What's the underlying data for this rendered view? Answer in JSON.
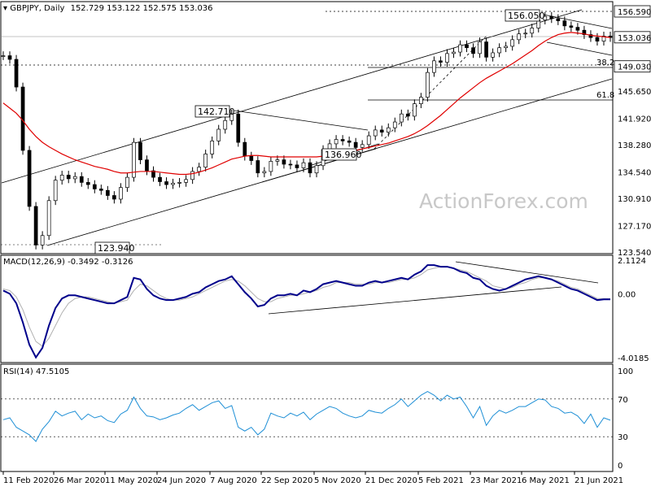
{
  "chart_data": [
    {
      "type": "candlestick",
      "title": "GBPJPY, Daily",
      "ohlc_header": "152.729 153.122 152.575 153.036",
      "y_ticks": [
        "156.590",
        "153.036",
        "149.030",
        "145.650",
        "141.920",
        "138.280",
        "134.540",
        "130.910",
        "127.170",
        "123.540"
      ],
      "ylim": [
        123.54,
        156.59
      ],
      "x_ticks": [
        "11 Feb 2020",
        "26 Mar 2020",
        "11 May 2020",
        "24 Jun 2020",
        "7 Aug 2020",
        "22 Sep 2020",
        "5 Nov 2020",
        "21 Dec 2020",
        "5 Feb 2021",
        "23 Mar 2021",
        "6 May 2021",
        "21 Jun 2021"
      ],
      "close_series": [
        150.5,
        150.0,
        146.2,
        137.5,
        129.8,
        124.5,
        125.8,
        130.6,
        133.4,
        134.1,
        133.6,
        133.9,
        133.1,
        132.8,
        132.2,
        132.0,
        131.3,
        130.8,
        132.4,
        133.8,
        138.6,
        136.2,
        134.7,
        133.8,
        133.2,
        132.8,
        133.0,
        133.1,
        133.5,
        134.6,
        135.2,
        137.0,
        138.8,
        140.4,
        141.6,
        142.5,
        138.6,
        136.7,
        136.1,
        134.4,
        134.6,
        136.0,
        136.2,
        135.6,
        135.5,
        135.1,
        135.8,
        134.4,
        135.4,
        137.6,
        138.4,
        139.0,
        138.8,
        138.6,
        137.9,
        138.3,
        139.5,
        140.3,
        140.0,
        140.6,
        141.4,
        142.5,
        142.2,
        143.9,
        144.8,
        148.2,
        149.8,
        149.6,
        150.8,
        151.0,
        152.0,
        151.6,
        150.8,
        152.4,
        150.3,
        150.9,
        151.6,
        151.8,
        152.7,
        153.5,
        153.6,
        154.3,
        155.4,
        155.9,
        155.6,
        155.3,
        154.6,
        154.4,
        154.0,
        153.4,
        153.0,
        152.5,
        153.2,
        153.0
      ],
      "sma55": [
        144.0,
        143.3,
        142.6,
        141.6,
        140.4,
        139.4,
        138.6,
        138.0,
        137.5,
        137.0,
        136.6,
        136.2,
        135.9,
        135.6,
        135.3,
        135.1,
        134.9,
        134.6,
        134.4,
        134.4,
        134.5,
        134.6,
        134.6,
        134.6,
        134.5,
        134.4,
        134.3,
        134.2,
        134.2,
        134.3,
        134.5,
        134.8,
        135.1,
        135.5,
        135.9,
        136.3,
        136.5,
        136.7,
        136.8,
        136.8,
        136.7,
        136.6,
        136.6,
        136.6,
        136.6,
        136.6,
        136.6,
        136.6,
        136.6,
        136.7,
        136.8,
        137.0,
        137.2,
        137.4,
        137.5,
        137.7,
        137.9,
        138.1,
        138.3,
        138.5,
        138.8,
        139.1,
        139.4,
        139.8,
        140.3,
        140.9,
        141.6,
        142.3,
        143.1,
        143.9,
        144.7,
        145.4,
        146.1,
        146.8,
        147.4,
        147.9,
        148.4,
        148.9,
        149.4,
        150.0,
        150.6,
        151.2,
        151.9,
        152.5,
        153.0,
        153.4,
        153.6,
        153.7,
        153.6,
        153.5,
        153.3,
        153.2,
        153.1,
        153.0
      ],
      "macd_label": "MACD(12,26,9) -0.3492 -0.3126",
      "macd_ticks": [
        "2.1124",
        "0.00",
        "-4.0185"
      ],
      "macd_ylim": [
        -4.0185,
        2.1124
      ],
      "macd_series": [
        0.2,
        0.0,
        -0.6,
        -1.8,
        -3.2,
        -4.0,
        -3.4,
        -2.0,
        -0.9,
        -0.3,
        -0.1,
        -0.1,
        -0.2,
        -0.3,
        -0.4,
        -0.5,
        -0.6,
        -0.6,
        -0.4,
        -0.2,
        1.0,
        0.9,
        0.3,
        -0.1,
        -0.3,
        -0.4,
        -0.4,
        -0.3,
        -0.2,
        0.0,
        0.1,
        0.4,
        0.6,
        0.8,
        0.9,
        1.1,
        0.6,
        0.1,
        -0.3,
        -0.8,
        -0.7,
        -0.3,
        -0.1,
        -0.1,
        0.0,
        -0.1,
        0.2,
        0.1,
        0.3,
        0.6,
        0.7,
        0.8,
        0.7,
        0.6,
        0.5,
        0.5,
        0.7,
        0.8,
        0.7,
        0.8,
        0.9,
        1.0,
        0.9,
        1.2,
        1.4,
        1.8,
        1.8,
        1.7,
        1.7,
        1.6,
        1.4,
        1.3,
        1.0,
        0.9,
        0.5,
        0.3,
        0.2,
        0.3,
        0.5,
        0.7,
        0.9,
        1.0,
        1.1,
        1.0,
        0.9,
        0.7,
        0.5,
        0.3,
        0.2,
        0.0,
        -0.2,
        -0.4,
        -0.35,
        -0.35
      ],
      "macd_signal": [
        0.3,
        0.2,
        -0.2,
        -1.0,
        -2.1,
        -3.0,
        -3.3,
        -2.8,
        -2.0,
        -1.2,
        -0.6,
        -0.3,
        -0.2,
        -0.2,
        -0.3,
        -0.4,
        -0.5,
        -0.6,
        -0.5,
        -0.4,
        0.2,
        0.6,
        0.5,
        0.2,
        -0.1,
        -0.3,
        -0.4,
        -0.4,
        -0.3,
        -0.2,
        0.0,
        0.2,
        0.4,
        0.6,
        0.8,
        0.9,
        0.8,
        0.5,
        0.1,
        -0.3,
        -0.5,
        -0.5,
        -0.3,
        -0.2,
        -0.1,
        -0.1,
        0.0,
        0.1,
        0.2,
        0.4,
        0.5,
        0.7,
        0.7,
        0.7,
        0.6,
        0.6,
        0.6,
        0.7,
        0.7,
        0.7,
        0.8,
        0.9,
        0.9,
        1.0,
        1.2,
        1.5,
        1.6,
        1.7,
        1.7,
        1.6,
        1.5,
        1.4,
        1.2,
        1.0,
        0.8,
        0.5,
        0.4,
        0.3,
        0.4,
        0.6,
        0.7,
        0.9,
        1.0,
        1.0,
        0.9,
        0.8,
        0.6,
        0.4,
        0.3,
        0.1,
        -0.1,
        -0.3,
        -0.3,
        -0.31
      ],
      "rsi_label": "RSI(14) 47.5105",
      "rsi_ticks": [
        "100",
        "70",
        "30",
        "0"
      ],
      "rsi_ylim": [
        0,
        100
      ],
      "rsi_series": [
        48,
        50,
        40,
        36,
        32,
        25,
        38,
        46,
        57,
        52,
        55,
        57,
        48,
        54,
        50,
        52,
        47,
        45,
        54,
        58,
        72,
        60,
        52,
        51,
        48,
        50,
        53,
        55,
        60,
        64,
        58,
        62,
        66,
        68,
        60,
        63,
        40,
        36,
        40,
        32,
        38,
        55,
        52,
        50,
        55,
        52,
        56,
        48,
        54,
        58,
        62,
        60,
        55,
        52,
        50,
        52,
        58,
        56,
        55,
        60,
        64,
        70,
        62,
        68,
        74,
        78,
        74,
        68,
        74,
        70,
        72,
        62,
        50,
        62,
        42,
        52,
        58,
        55,
        58,
        62,
        62,
        66,
        70,
        69,
        62,
        60,
        55,
        56,
        52,
        44,
        54,
        40,
        50,
        47.5
      ],
      "annotations": [
        "156.050",
        "142.710",
        "136.960",
        "123.940",
        "38.2",
        "61.8"
      ],
      "watermark": "ActionForex.com"
    }
  ],
  "colors": {
    "price": "#000000",
    "sma": "#e00000",
    "macd": "#00008b",
    "signal": "#b0b0b0",
    "rsi": "#1e8fd6",
    "watermark": "#c8c8c8"
  }
}
